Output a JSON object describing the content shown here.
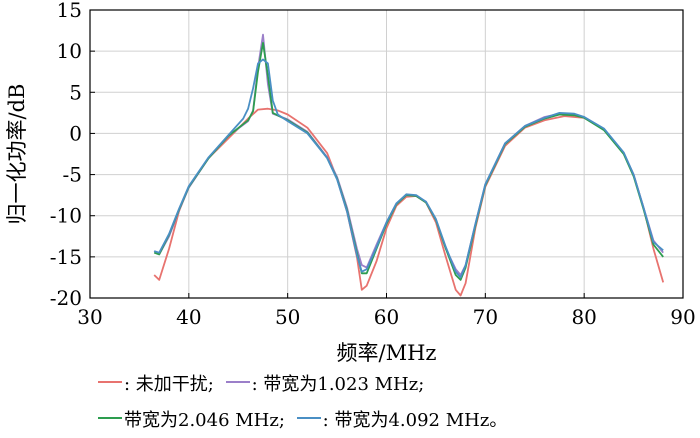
{
  "chart_data": {
    "type": "line",
    "xlabel": "频率/MHz",
    "ylabel": "归一化功率/dB",
    "xlim": [
      30,
      90
    ],
    "ylim": [
      -20,
      15
    ],
    "xticks": [
      "30",
      "40",
      "50",
      "60",
      "70",
      "80",
      "90"
    ],
    "yticks": [
      "15",
      "10",
      "5",
      "0",
      "-5",
      "-10",
      "-15",
      "-20"
    ],
    "grid": true,
    "legend_position": "bottom",
    "series": [
      {
        "name": "未加干扰",
        "color": "#e8736f",
        "points": [
          [
            36.5,
            -17.2
          ],
          [
            37,
            -17.8
          ],
          [
            38,
            -14
          ],
          [
            39,
            -9.5
          ],
          [
            40,
            -6.5
          ],
          [
            42,
            -3
          ],
          [
            44,
            -0.6
          ],
          [
            46,
            1.8
          ],
          [
            47,
            2.9
          ],
          [
            48,
            3
          ],
          [
            49,
            2.8
          ],
          [
            50,
            2.3
          ],
          [
            52,
            0.7
          ],
          [
            54,
            -2.4
          ],
          [
            55,
            -5.5
          ],
          [
            56,
            -9.5
          ],
          [
            57,
            -15
          ],
          [
            57.5,
            -19
          ],
          [
            58,
            -18.5
          ],
          [
            59,
            -15.5
          ],
          [
            60,
            -11.5
          ],
          [
            61,
            -8.8
          ],
          [
            62,
            -7.7
          ],
          [
            63,
            -7.6
          ],
          [
            64,
            -8.4
          ],
          [
            65,
            -10.8
          ],
          [
            66,
            -15
          ],
          [
            67,
            -19
          ],
          [
            67.5,
            -19.7
          ],
          [
            68,
            -18.2
          ],
          [
            69,
            -11.5
          ],
          [
            70,
            -6.5
          ],
          [
            72,
            -1.5
          ],
          [
            74,
            0.7
          ],
          [
            76,
            1.6
          ],
          [
            78,
            2.1
          ],
          [
            80,
            1.9
          ],
          [
            82,
            0.5
          ],
          [
            84,
            -2.4
          ],
          [
            85,
            -5
          ],
          [
            86,
            -9
          ],
          [
            87,
            -14
          ],
          [
            88,
            -18.1
          ]
        ]
      },
      {
        "name": "带宽为1.023 MHz",
        "color": "#9b7fc9",
        "points": [
          [
            36.5,
            -14.3
          ],
          [
            37,
            -14.7
          ],
          [
            38,
            -12.5
          ],
          [
            39,
            -9.4
          ],
          [
            40,
            -6.6
          ],
          [
            42,
            -3
          ],
          [
            44,
            -0.3
          ],
          [
            46,
            1.5
          ],
          [
            46.5,
            2.8
          ],
          [
            47,
            8
          ],
          [
            47.5,
            12
          ],
          [
            48,
            6
          ],
          [
            48.5,
            2.4
          ],
          [
            50,
            1.7
          ],
          [
            52,
            0.2
          ],
          [
            54,
            -2.9
          ],
          [
            55,
            -5.3
          ],
          [
            56,
            -9
          ],
          [
            57,
            -14
          ],
          [
            57.5,
            -16
          ],
          [
            58,
            -16.3
          ],
          [
            59,
            -13.5
          ],
          [
            60,
            -10.8
          ],
          [
            61,
            -8.5
          ],
          [
            62,
            -7.5
          ],
          [
            63,
            -7.6
          ],
          [
            64,
            -8.3
          ],
          [
            65,
            -10.5
          ],
          [
            66,
            -14
          ],
          [
            67,
            -16.5
          ],
          [
            67.5,
            -17.2
          ],
          [
            68,
            -16
          ],
          [
            69,
            -11
          ],
          [
            70,
            -6.2
          ],
          [
            72,
            -1.2
          ],
          [
            74,
            0.9
          ],
          [
            76,
            2
          ],
          [
            77.5,
            2.4
          ],
          [
            79,
            2.3
          ],
          [
            80,
            2
          ],
          [
            82,
            0.5
          ],
          [
            84,
            -2.4
          ],
          [
            85,
            -5
          ],
          [
            86,
            -9
          ],
          [
            87,
            -13
          ],
          [
            88,
            -14.5
          ]
        ]
      },
      {
        "name": "带宽为2.046 MHz",
        "color": "#2d9d4f",
        "points": [
          [
            36.5,
            -14.5
          ],
          [
            37,
            -14.7
          ],
          [
            38,
            -12.3
          ],
          [
            39,
            -9.3
          ],
          [
            40,
            -6.5
          ],
          [
            42,
            -3
          ],
          [
            44,
            -0.3
          ],
          [
            46,
            1.6
          ],
          [
            46.5,
            2.7
          ],
          [
            47,
            7.5
          ],
          [
            47.5,
            11
          ],
          [
            48,
            7
          ],
          [
            48.5,
            2.5
          ],
          [
            50,
            1.6
          ],
          [
            52,
            0.1
          ],
          [
            54,
            -3
          ],
          [
            55,
            -5.5
          ],
          [
            56,
            -9.3
          ],
          [
            57,
            -14.5
          ],
          [
            57.5,
            -17
          ],
          [
            58,
            -17
          ],
          [
            59,
            -14
          ],
          [
            60,
            -11
          ],
          [
            61,
            -8.6
          ],
          [
            62,
            -7.5
          ],
          [
            63,
            -7.6
          ],
          [
            64,
            -8.4
          ],
          [
            65,
            -10.5
          ],
          [
            66,
            -14
          ],
          [
            67,
            -17.2
          ],
          [
            67.5,
            -17.8
          ],
          [
            68,
            -16.3
          ],
          [
            69,
            -11.2
          ],
          [
            70,
            -6.3
          ],
          [
            72,
            -1.3
          ],
          [
            74,
            0.8
          ],
          [
            76,
            1.8
          ],
          [
            77.5,
            2.3
          ],
          [
            79,
            2.2
          ],
          [
            80,
            1.9
          ],
          [
            82,
            0.4
          ],
          [
            84,
            -2.5
          ],
          [
            85,
            -5.2
          ],
          [
            86,
            -9.2
          ],
          [
            87,
            -13.5
          ],
          [
            88,
            -15
          ]
        ]
      },
      {
        "name": "带宽为4.092 MHz",
        "color": "#4a8fc4",
        "points": [
          [
            36.5,
            -14.3
          ],
          [
            37,
            -14.5
          ],
          [
            38,
            -12.2
          ],
          [
            39,
            -9.2
          ],
          [
            40,
            -6.4
          ],
          [
            42,
            -2.9
          ],
          [
            44,
            -0.2
          ],
          [
            45.5,
            1.8
          ],
          [
            46,
            3
          ],
          [
            46.5,
            5.5
          ],
          [
            47,
            8.5
          ],
          [
            47.5,
            9
          ],
          [
            48,
            8.5
          ],
          [
            48.5,
            4
          ],
          [
            49,
            2.3
          ],
          [
            50,
            1.5
          ],
          [
            52,
            0
          ],
          [
            54,
            -3
          ],
          [
            55,
            -5.6
          ],
          [
            56,
            -9.5
          ],
          [
            57,
            -14.8
          ],
          [
            57.5,
            -16.8
          ],
          [
            58,
            -16.5
          ],
          [
            59,
            -13.8
          ],
          [
            60,
            -10.8
          ],
          [
            61,
            -8.5
          ],
          [
            62,
            -7.4
          ],
          [
            63,
            -7.5
          ],
          [
            64,
            -8.3
          ],
          [
            65,
            -10.4
          ],
          [
            66,
            -13.8
          ],
          [
            67,
            -16.8
          ],
          [
            67.5,
            -17.5
          ],
          [
            68,
            -16
          ],
          [
            69,
            -11
          ],
          [
            70,
            -6.2
          ],
          [
            72,
            -1.2
          ],
          [
            74,
            0.9
          ],
          [
            76,
            1.9
          ],
          [
            77.5,
            2.5
          ],
          [
            79,
            2.4
          ],
          [
            80,
            2
          ],
          [
            82,
            0.6
          ],
          [
            84,
            -2.3
          ],
          [
            85,
            -5
          ],
          [
            86,
            -9
          ],
          [
            87,
            -13.2
          ],
          [
            88,
            -14.2
          ]
        ]
      }
    ]
  },
  "legend": {
    "row1_a_label": ": 未加干扰;",
    "row1_b_label": ": 带宽为1.023 MHz;",
    "row2_a_label": "带宽为2.046 MHz;",
    "row2_b_label": ": 带宽为4.092 MHz。",
    "color_red": "#e8736f",
    "color_purple": "#9b7fc9",
    "color_green": "#2d9d4f",
    "color_blue": "#4a8fc4"
  }
}
